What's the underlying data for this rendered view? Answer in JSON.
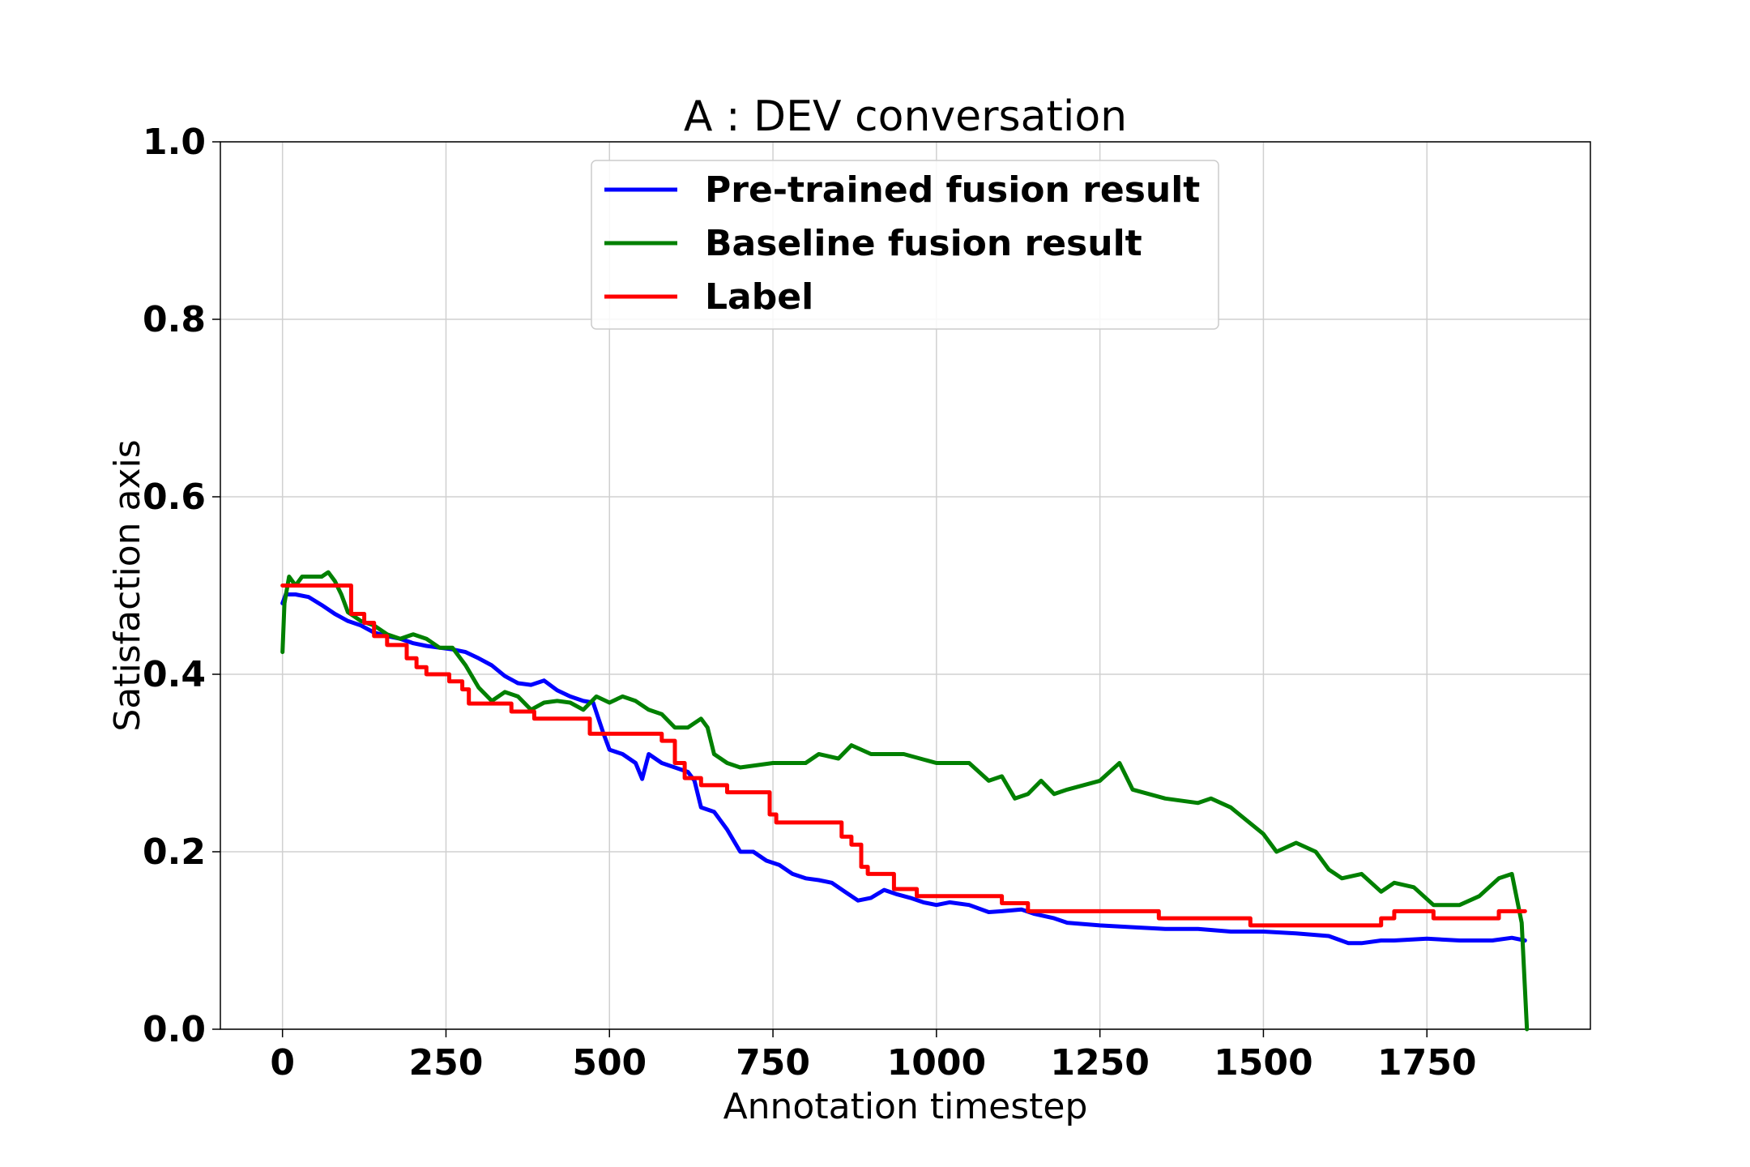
{
  "chart_data": {
    "type": "line",
    "title": "A : DEV conversation",
    "xlabel": "Annotation timestep",
    "ylabel": "Satisfaction axis",
    "xlim": [
      -95,
      2000
    ],
    "ylim": [
      0.0,
      1.0
    ],
    "xticks": [
      0,
      250,
      500,
      750,
      1000,
      1250,
      1500,
      1750
    ],
    "xtick_labels": [
      "0",
      "250",
      "500",
      "750",
      "1000",
      "1250",
      "1500",
      "1750"
    ],
    "yticks": [
      0.0,
      0.2,
      0.4,
      0.6,
      0.8,
      1.0
    ],
    "ytick_labels": [
      "0.0",
      "0.2",
      "0.4",
      "0.6",
      "0.8",
      "1.0"
    ],
    "grid": true,
    "legend_position": "top-center",
    "series": [
      {
        "name": "Pre-trained fusion result",
        "color": "#0000ff",
        "x": [
          0,
          5,
          20,
          40,
          60,
          80,
          100,
          120,
          140,
          160,
          180,
          200,
          220,
          240,
          260,
          280,
          300,
          320,
          340,
          360,
          380,
          400,
          420,
          440,
          460,
          475,
          490,
          500,
          520,
          540,
          550,
          560,
          580,
          600,
          620,
          630,
          640,
          660,
          680,
          700,
          720,
          740,
          760,
          780,
          800,
          820,
          840,
          860,
          880,
          900,
          920,
          940,
          960,
          980,
          1000,
          1020,
          1050,
          1080,
          1100,
          1130,
          1150,
          1180,
          1200,
          1250,
          1300,
          1350,
          1400,
          1450,
          1500,
          1550,
          1600,
          1630,
          1650,
          1680,
          1700,
          1750,
          1800,
          1850,
          1880,
          1900
        ],
        "y": [
          0.48,
          0.49,
          0.49,
          0.487,
          0.478,
          0.468,
          0.46,
          0.455,
          0.447,
          0.443,
          0.44,
          0.435,
          0.432,
          0.43,
          0.428,
          0.425,
          0.418,
          0.41,
          0.398,
          0.39,
          0.388,
          0.393,
          0.382,
          0.375,
          0.37,
          0.368,
          0.335,
          0.315,
          0.31,
          0.3,
          0.282,
          0.31,
          0.3,
          0.295,
          0.29,
          0.28,
          0.25,
          0.245,
          0.225,
          0.2,
          0.2,
          0.19,
          0.185,
          0.175,
          0.17,
          0.168,
          0.165,
          0.155,
          0.145,
          0.148,
          0.157,
          0.152,
          0.148,
          0.143,
          0.14,
          0.143,
          0.14,
          0.132,
          0.133,
          0.135,
          0.13,
          0.125,
          0.12,
          0.117,
          0.115,
          0.113,
          0.113,
          0.11,
          0.11,
          0.108,
          0.105,
          0.097,
          0.097,
          0.1,
          0.1,
          0.102,
          0.1,
          0.1,
          0.103,
          0.1
        ]
      },
      {
        "name": "Baseline fusion result",
        "color": "#008000",
        "x": [
          0,
          3,
          10,
          20,
          30,
          40,
          60,
          70,
          80,
          90,
          100,
          110,
          120,
          140,
          160,
          180,
          200,
          220,
          240,
          260,
          280,
          300,
          320,
          340,
          360,
          380,
          400,
          420,
          440,
          460,
          480,
          500,
          520,
          540,
          560,
          580,
          600,
          620,
          640,
          650,
          660,
          680,
          700,
          750,
          800,
          820,
          850,
          870,
          900,
          950,
          1000,
          1050,
          1080,
          1100,
          1120,
          1140,
          1160,
          1180,
          1200,
          1250,
          1280,
          1300,
          1350,
          1400,
          1420,
          1450,
          1500,
          1520,
          1550,
          1580,
          1600,
          1620,
          1650,
          1680,
          1700,
          1730,
          1760,
          1780,
          1800,
          1830,
          1860,
          1880,
          1895,
          1903
        ],
        "y": [
          0.425,
          0.48,
          0.51,
          0.5,
          0.51,
          0.51,
          0.51,
          0.515,
          0.505,
          0.49,
          0.47,
          0.465,
          0.46,
          0.455,
          0.445,
          0.44,
          0.445,
          0.44,
          0.43,
          0.43,
          0.41,
          0.385,
          0.37,
          0.38,
          0.375,
          0.36,
          0.368,
          0.37,
          0.368,
          0.36,
          0.375,
          0.368,
          0.375,
          0.37,
          0.36,
          0.355,
          0.34,
          0.34,
          0.35,
          0.34,
          0.31,
          0.3,
          0.295,
          0.3,
          0.3,
          0.31,
          0.305,
          0.32,
          0.31,
          0.31,
          0.3,
          0.3,
          0.28,
          0.285,
          0.26,
          0.265,
          0.28,
          0.265,
          0.27,
          0.28,
          0.3,
          0.27,
          0.26,
          0.255,
          0.26,
          0.25,
          0.22,
          0.2,
          0.21,
          0.2,
          0.18,
          0.17,
          0.175,
          0.155,
          0.165,
          0.16,
          0.14,
          0.14,
          0.14,
          0.15,
          0.17,
          0.175,
          0.12,
          0.0
        ]
      },
      {
        "name": "Label",
        "color": "#ff0000",
        "x": [
          0,
          105,
          105,
          125,
          125,
          140,
          140,
          160,
          160,
          190,
          190,
          205,
          205,
          220,
          220,
          255,
          255,
          275,
          275,
          285,
          285,
          350,
          350,
          385,
          385,
          470,
          470,
          580,
          580,
          600,
          600,
          615,
          615,
          640,
          640,
          680,
          680,
          745,
          745,
          755,
          755,
          855,
          855,
          870,
          870,
          885,
          885,
          895,
          895,
          935,
          935,
          970,
          970,
          1100,
          1100,
          1140,
          1140,
          1340,
          1340,
          1480,
          1480,
          1665,
          1665,
          1680,
          1680,
          1700,
          1700,
          1760,
          1760,
          1860,
          1860,
          1900
        ],
        "y": [
          0.5,
          0.5,
          0.468,
          0.468,
          0.458,
          0.458,
          0.443,
          0.443,
          0.433,
          0.433,
          0.418,
          0.418,
          0.408,
          0.408,
          0.4,
          0.4,
          0.392,
          0.392,
          0.383,
          0.383,
          0.367,
          0.367,
          0.358,
          0.358,
          0.35,
          0.35,
          0.333,
          0.333,
          0.325,
          0.325,
          0.3,
          0.3,
          0.283,
          0.283,
          0.275,
          0.275,
          0.267,
          0.267,
          0.242,
          0.242,
          0.233,
          0.233,
          0.217,
          0.217,
          0.208,
          0.208,
          0.183,
          0.183,
          0.175,
          0.175,
          0.158,
          0.158,
          0.15,
          0.15,
          0.142,
          0.142,
          0.133,
          0.133,
          0.125,
          0.125,
          0.117,
          0.117,
          0.117,
          0.117,
          0.125,
          0.125,
          0.133,
          0.133,
          0.125,
          0.125,
          0.133,
          0.133
        ]
      }
    ]
  }
}
